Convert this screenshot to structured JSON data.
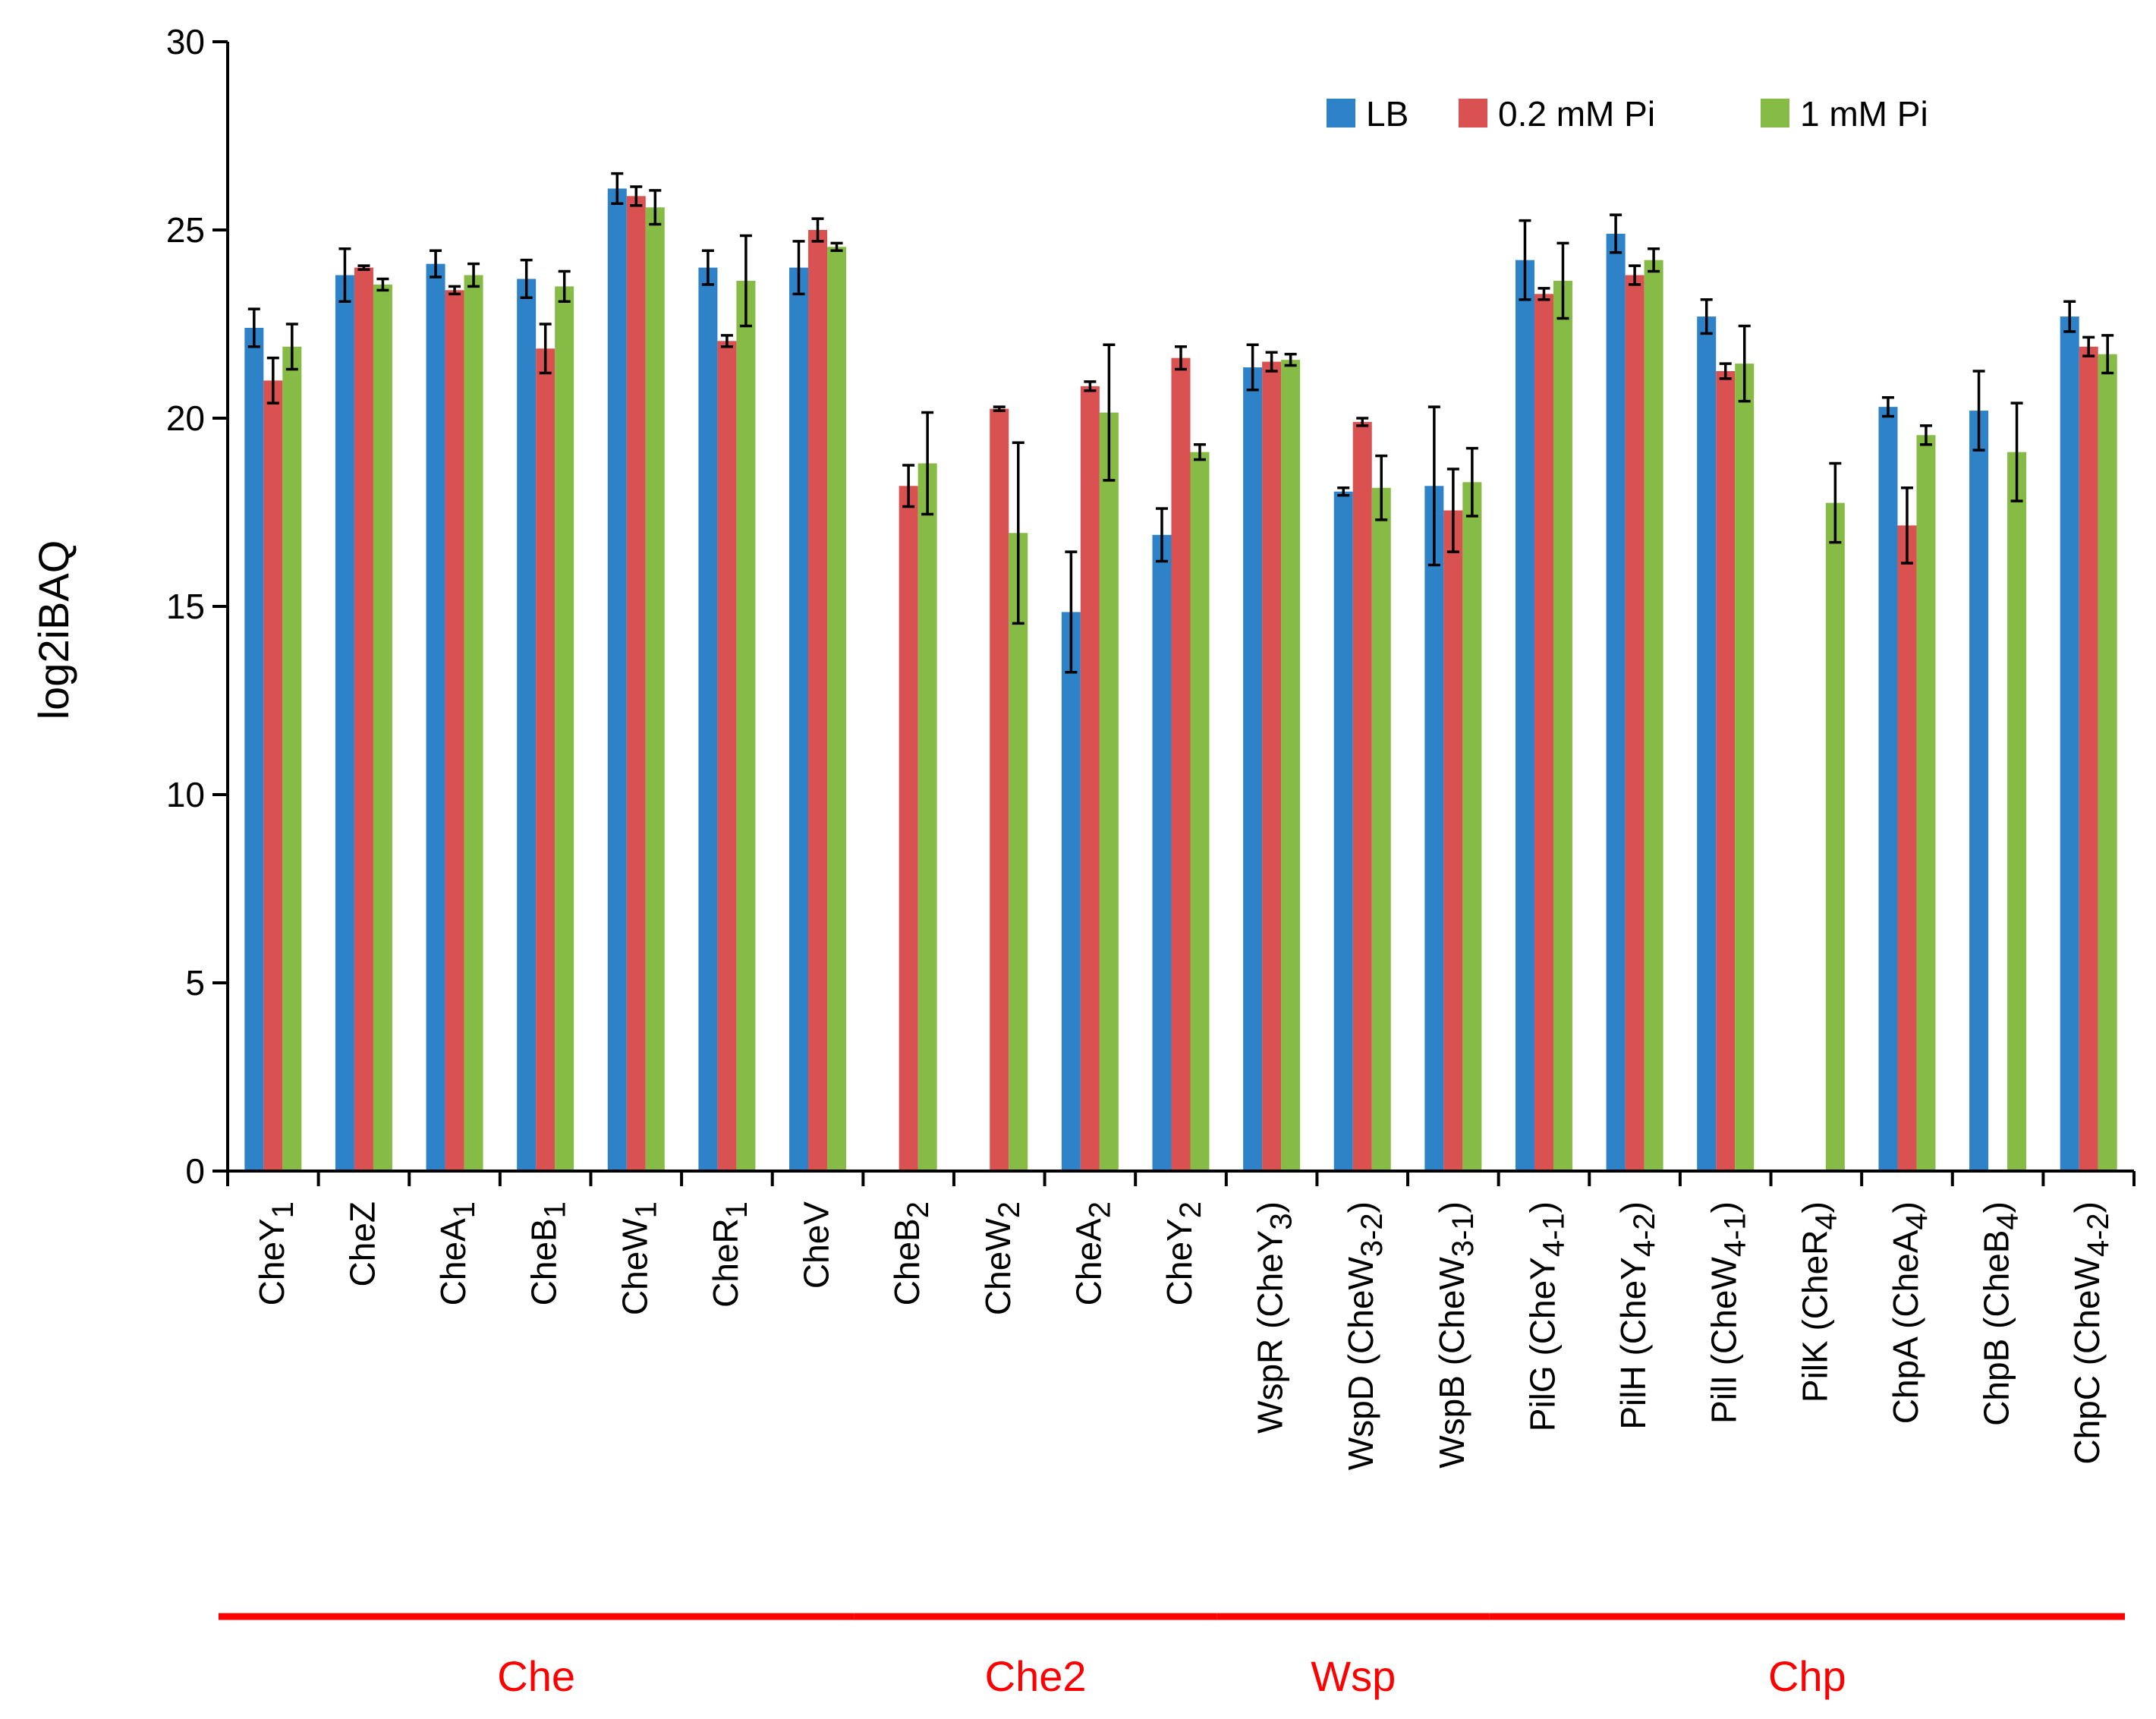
{
  "chart_data": {
    "type": "bar",
    "title": "",
    "xlabel": "",
    "ylabel": "log2iBAQ",
    "ylim": [
      0,
      30
    ],
    "yticks": [
      0,
      5,
      10,
      15,
      20,
      25,
      30
    ],
    "grid": false,
    "legend_position": "top-right",
    "categories": [
      {
        "base": "CheY",
        "sub": "1"
      },
      {
        "base": "CheZ",
        "sub": ""
      },
      {
        "base": "CheA",
        "sub": "1"
      },
      {
        "base": "CheB",
        "sub": "1"
      },
      {
        "base": "CheW",
        "sub": "1"
      },
      {
        "base": "CheR",
        "sub": "1"
      },
      {
        "base": "CheV",
        "sub": ""
      },
      {
        "base": "CheB",
        "sub": "2"
      },
      {
        "base": "CheW",
        "sub": "2"
      },
      {
        "base": "CheA",
        "sub": "2"
      },
      {
        "base": "CheY",
        "sub": "2"
      },
      {
        "base": "WspR (CheY",
        "sub": "3",
        "post": ")"
      },
      {
        "base": "WspD (CheW",
        "sub": "3-2",
        "post": ")"
      },
      {
        "base": "WspB (CheW",
        "sub": "3-1",
        "post": ")"
      },
      {
        "base": "PilG (CheY",
        "sub": "4-1",
        "post": ")"
      },
      {
        "base": "PilH (CheY",
        "sub": "4-2",
        "post": ")"
      },
      {
        "base": "PilI (CheW",
        "sub": "4-1",
        "post": ")"
      },
      {
        "base": "PilK (CheR",
        "sub": "4",
        "post": ")"
      },
      {
        "base": "ChpA (CheA",
        "sub": "4",
        "post": ")"
      },
      {
        "base": "ChpB (CheB",
        "sub": "4",
        "post": ")"
      },
      {
        "base": "ChpC (CheW",
        "sub": "4-2",
        "post": ")"
      }
    ],
    "series": [
      {
        "name": "LB",
        "color": "#2e83c8",
        "values": [
          22.4,
          23.8,
          24.1,
          23.7,
          26.1,
          24.0,
          24.0,
          null,
          null,
          14.85,
          16.9,
          21.35,
          18.05,
          18.2,
          24.2,
          24.9,
          22.7,
          null,
          20.3,
          20.2,
          22.7
        ],
        "errors": [
          0.5,
          0.7,
          0.35,
          0.5,
          0.4,
          0.45,
          0.7,
          null,
          null,
          1.6,
          0.7,
          0.6,
          0.1,
          2.1,
          1.05,
          0.5,
          0.45,
          null,
          0.25,
          1.05,
          0.4
        ]
      },
      {
        "name": "0.2 mM Pi",
        "color": "#d95150",
        "values": [
          21.0,
          24.0,
          23.4,
          21.85,
          25.9,
          22.05,
          25.0,
          18.2,
          20.25,
          20.85,
          21.6,
          21.5,
          19.9,
          17.55,
          23.3,
          23.8,
          21.25,
          null,
          17.15,
          null,
          21.9
        ],
        "errors": [
          0.6,
          0.05,
          0.1,
          0.65,
          0.25,
          0.15,
          0.3,
          0.55,
          0.05,
          0.12,
          0.3,
          0.25,
          0.1,
          1.1,
          0.15,
          0.25,
          0.2,
          null,
          1.0,
          null,
          0.25
        ]
      },
      {
        "name": "1 mM Pi",
        "color": "#86bc45",
        "values": [
          21.9,
          23.55,
          23.8,
          23.5,
          25.6,
          23.65,
          24.55,
          18.8,
          16.95,
          20.15,
          19.1,
          21.55,
          18.15,
          18.3,
          23.65,
          24.2,
          21.45,
          17.75,
          19.55,
          19.1,
          21.7
        ],
        "errors": [
          0.6,
          0.15,
          0.3,
          0.4,
          0.45,
          1.2,
          0.1,
          1.35,
          2.4,
          1.8,
          0.2,
          0.15,
          0.85,
          0.9,
          1.0,
          0.3,
          1.0,
          1.05,
          0.25,
          1.3,
          0.5
        ]
      }
    ],
    "groups": [
      {
        "label": "Che",
        "categories": [
          0,
          6
        ]
      },
      {
        "label": "Che2",
        "categories": [
          7,
          10
        ]
      },
      {
        "label": "Wsp",
        "categories": [
          11,
          13
        ]
      },
      {
        "label": "Chp",
        "categories": [
          14,
          20
        ]
      }
    ],
    "group_color": "#ff0000"
  }
}
